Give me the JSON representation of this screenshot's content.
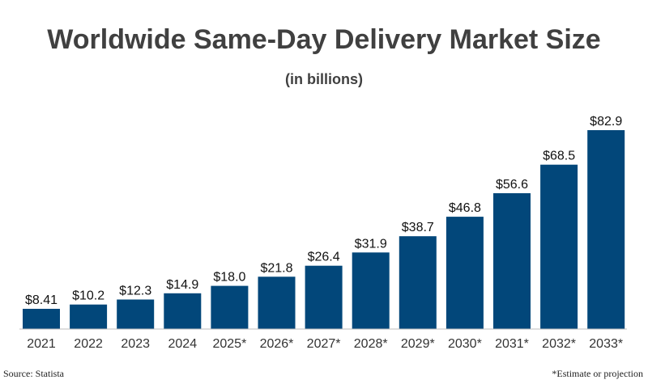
{
  "chart_data": {
    "type": "bar",
    "title": "Worldwide Same-Day Delivery Market Size",
    "subtitle": "(in billions)",
    "categories": [
      "2021",
      "2022",
      "2023",
      "2024",
      "2025*",
      "2026*",
      "2027*",
      "2028*",
      "2029*",
      "2030*",
      "2031*",
      "2032*",
      "2033*"
    ],
    "values": [
      8.41,
      10.2,
      12.3,
      14.9,
      18.0,
      21.8,
      26.4,
      31.9,
      38.7,
      46.8,
      56.6,
      68.5,
      82.9
    ],
    "data_labels": [
      "$8.41",
      "$10.2",
      "$12.3",
      "$14.9",
      "$18.0",
      "$21.8",
      "$26.4",
      "$31.9",
      "$38.7",
      "$46.8",
      "$56.6",
      "$68.5",
      "$82.9"
    ],
    "ylim": [
      0,
      82.9
    ],
    "grid": false,
    "bar_color": "#02477a"
  },
  "footer": {
    "source": "Source: Statista",
    "note": "*Estimate or projection"
  }
}
